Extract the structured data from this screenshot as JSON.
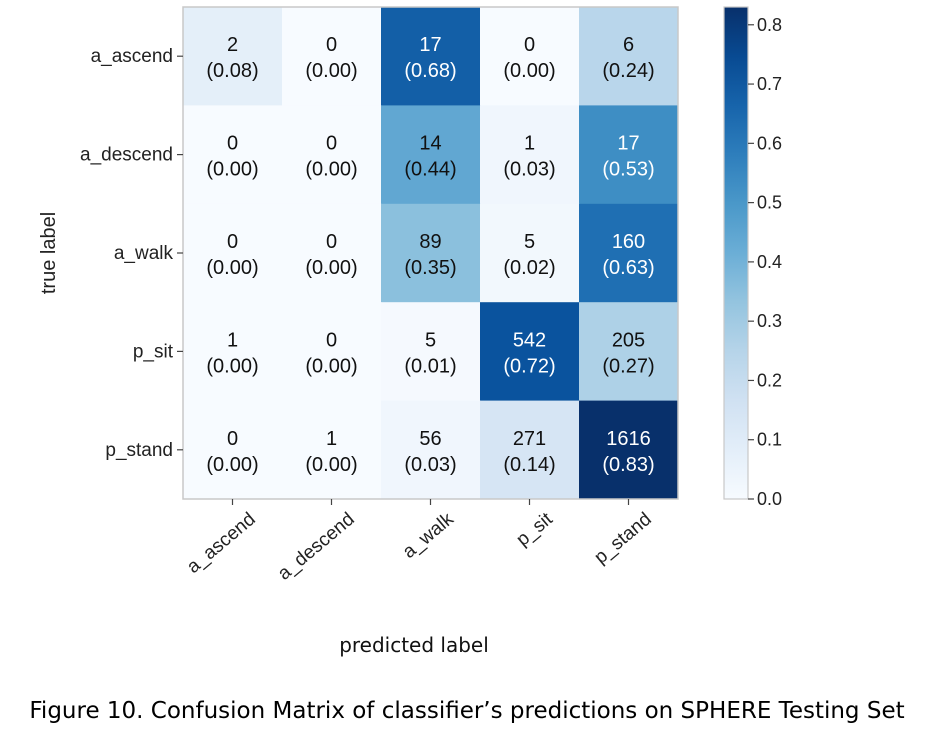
{
  "caption": "Figure 10. Confusion Matrix of classifier’s predictions on SPHERE Testing Set",
  "chart_data": {
    "type": "heatmap",
    "xlabel": "predicted label",
    "ylabel": "true label",
    "x_categories": [
      "a_ascend",
      "a_descend",
      "a_walk",
      "p_sit",
      "p_stand"
    ],
    "y_categories": [
      "a_ascend",
      "a_descend",
      "a_walk",
      "p_sit",
      "p_stand"
    ],
    "counts": [
      [
        2,
        0,
        17,
        0,
        6
      ],
      [
        0,
        0,
        14,
        1,
        17
      ],
      [
        0,
        0,
        89,
        5,
        160
      ],
      [
        1,
        0,
        5,
        542,
        205
      ],
      [
        0,
        1,
        56,
        271,
        1616
      ]
    ],
    "fractions": [
      [
        0.08,
        0.0,
        0.68,
        0.0,
        0.24
      ],
      [
        0.0,
        0.0,
        0.44,
        0.03,
        0.53
      ],
      [
        0.0,
        0.0,
        0.35,
        0.02,
        0.63
      ],
      [
        0.0,
        0.0,
        0.01,
        0.72,
        0.27
      ],
      [
        0.0,
        0.0,
        0.03,
        0.14,
        0.83
      ]
    ],
    "count_labels": [
      [
        "2",
        "0",
        "17",
        "0",
        "6"
      ],
      [
        "0",
        "0",
        "14",
        "1",
        "17"
      ],
      [
        "0",
        "0",
        "89",
        "5",
        "160"
      ],
      [
        "1",
        "0",
        "5",
        "542",
        "205"
      ],
      [
        "0",
        "1",
        "56",
        "271",
        "1616"
      ]
    ],
    "fraction_labels": [
      [
        "(0.08)",
        "(0.00)",
        "(0.68)",
        "(0.00)",
        "(0.24)"
      ],
      [
        "(0.00)",
        "(0.00)",
        "(0.44)",
        "(0.03)",
        "(0.53)"
      ],
      [
        "(0.00)",
        "(0.00)",
        "(0.35)",
        "(0.02)",
        "(0.63)"
      ],
      [
        "(0.00)",
        "(0.00)",
        "(0.01)",
        "(0.72)",
        "(0.27)"
      ],
      [
        "(0.00)",
        "(0.00)",
        "(0.03)",
        "(0.14)",
        "(0.83)"
      ]
    ],
    "colorbar": {
      "min": 0.0,
      "max": 0.83,
      "ticks": [
        0.0,
        0.1,
        0.2,
        0.3,
        0.4,
        0.5,
        0.6,
        0.7,
        0.8
      ],
      "tick_labels": [
        "0.0",
        "0.1",
        "0.2",
        "0.3",
        "0.4",
        "0.5",
        "0.6",
        "0.7",
        "0.8"
      ],
      "colormap": "Blues",
      "color_low": "#f7fbff",
      "color_high": "#08306b"
    }
  }
}
